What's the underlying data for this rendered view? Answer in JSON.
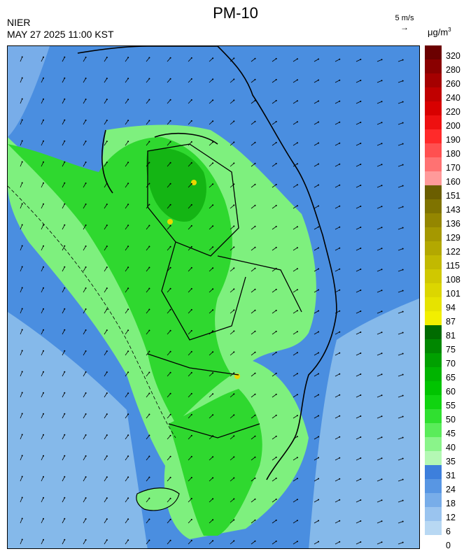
{
  "title": "PM-10",
  "source": "NIER",
  "timestamp": "MAY 27 2025 11:00 KST",
  "wind_reference": {
    "label": "5 m/s",
    "arrow": "→"
  },
  "unit": {
    "base": "μg/m",
    "exponent": "3"
  },
  "colors": {
    "sea": "#4a8ee0",
    "sea_light": "#85b9ea",
    "land_light": "#7ef07e",
    "land_mid": "#2fd82f",
    "land_dark": "#14b514",
    "hot_spot": "#e8d600",
    "coast": "#000000",
    "boundary": "#8fa9c7"
  },
  "scale": {
    "labels": [
      "320",
      "280",
      "260",
      "240",
      "220",
      "200",
      "190",
      "180",
      "170",
      "160",
      "151",
      "143",
      "136",
      "129",
      "122",
      "115",
      "108",
      "101",
      "94",
      "87",
      "81",
      "75",
      "70",
      "65",
      "60",
      "55",
      "50",
      "45",
      "40",
      "35",
      "31",
      "24",
      "18",
      "12",
      "6",
      "0"
    ],
    "colors": [
      "#6b0000",
      "#8a0000",
      "#a50000",
      "#c00000",
      "#d80000",
      "#ee1010",
      "#ff2a2a",
      "#ff5050",
      "#ff7272",
      "#ff9a9a",
      "#6b5e00",
      "#7f7300",
      "#948600",
      "#a59800",
      "#b3a800",
      "#c2b900",
      "#d0c800",
      "#dcd600",
      "#e6e300",
      "#f2ef00",
      "#006b00",
      "#008700",
      "#00a000",
      "#00b400",
      "#00c400",
      "#10d410",
      "#30e030",
      "#5aec5a",
      "#8af48a",
      "#b4f8b4",
      "#3d7fdc",
      "#5896e3",
      "#78ade9",
      "#9ac4ef",
      "#b8d8f3"
    ]
  }
}
